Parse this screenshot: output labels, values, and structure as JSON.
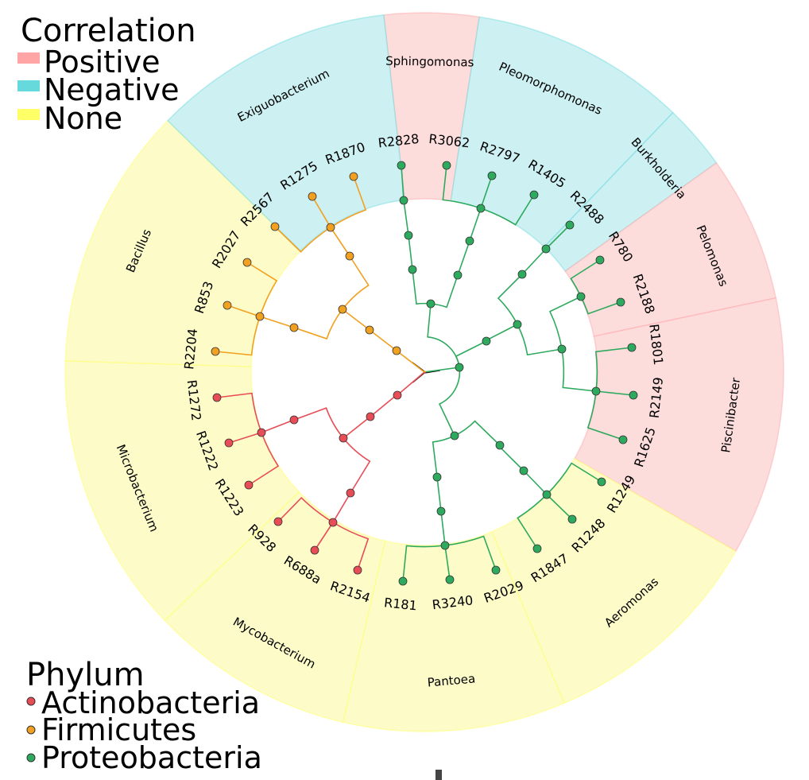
{
  "legend_correlation": {
    "title": "Correlation",
    "items": [
      {
        "label": "Positive",
        "color": "#ffa5a5"
      },
      {
        "label": "Negative",
        "color": "#66d9dd"
      },
      {
        "label": "None",
        "color": "#ffff66"
      }
    ]
  },
  "legend_phylum": {
    "title": "Phylum",
    "items": [
      {
        "label": "Actinobacteria",
        "color": "#e84c56"
      },
      {
        "label": "Firmicutes",
        "color": "#f2a020"
      },
      {
        "label": "Proteobacteria",
        "color": "#2eaa5e"
      }
    ]
  },
  "sector_fills": {
    "Positive": "#fddcdc",
    "Negative": "#cdf0f2",
    "None": "#fdfcc8"
  },
  "clades": [
    {
      "genus": "Sphingomonas",
      "correlation": "Positive"
    },
    {
      "genus": "Pleomorphomonas",
      "correlation": "Negative"
    },
    {
      "genus": "Burkholderia",
      "correlation": "Negative"
    },
    {
      "genus": "Pelomonas",
      "correlation": "Positive"
    },
    {
      "genus": "Piscinibacter",
      "correlation": "Positive"
    },
    {
      "genus": "Aeromonas",
      "correlation": "None"
    },
    {
      "genus": "Pantoea",
      "correlation": "None"
    },
    {
      "genus": "Mycobacterium",
      "correlation": "None"
    },
    {
      "genus": "Microbacterium",
      "correlation": "None"
    },
    {
      "genus": "Bacillus",
      "correlation": "None"
    },
    {
      "genus": "Exiguobacterium",
      "correlation": "Negative"
    }
  ],
  "tips": [
    {
      "label": "R2828",
      "phylum": "Proteobacteria"
    },
    {
      "label": "R3062",
      "phylum": "Proteobacteria"
    },
    {
      "label": "R2797",
      "phylum": "Proteobacteria"
    },
    {
      "label": "R1405",
      "phylum": "Proteobacteria"
    },
    {
      "label": "R2488",
      "phylum": "Proteobacteria"
    },
    {
      "label": "R780",
      "phylum": "Proteobacteria"
    },
    {
      "label": "R2188",
      "phylum": "Proteobacteria"
    },
    {
      "label": "R1801",
      "phylum": "Proteobacteria"
    },
    {
      "label": "R2149",
      "phylum": "Proteobacteria"
    },
    {
      "label": "R1625",
      "phylum": "Proteobacteria"
    },
    {
      "label": "R1249",
      "phylum": "Proteobacteria"
    },
    {
      "label": "R1248",
      "phylum": "Proteobacteria"
    },
    {
      "label": "R1847",
      "phylum": "Proteobacteria"
    },
    {
      "label": "R2029",
      "phylum": "Proteobacteria"
    },
    {
      "label": "R3240",
      "phylum": "Proteobacteria"
    },
    {
      "label": "R181",
      "phylum": "Proteobacteria"
    },
    {
      "label": "R2154",
      "phylum": "Actinobacteria"
    },
    {
      "label": "R688a",
      "phylum": "Actinobacteria"
    },
    {
      "label": "R928",
      "phylum": "Actinobacteria"
    },
    {
      "label": "R1223",
      "phylum": "Actinobacteria"
    },
    {
      "label": "R1222",
      "phylum": "Actinobacteria"
    },
    {
      "label": "R1272",
      "phylum": "Actinobacteria"
    },
    {
      "label": "R2204",
      "phylum": "Firmicutes"
    },
    {
      "label": "R853",
      "phylum": "Firmicutes"
    },
    {
      "label": "R2027",
      "phylum": "Firmicutes"
    },
    {
      "label": "R2567",
      "phylum": "Firmicutes"
    },
    {
      "label": "R1275",
      "phylum": "Firmicutes"
    },
    {
      "label": "R1870",
      "phylum": "Firmicutes"
    }
  ]
}
